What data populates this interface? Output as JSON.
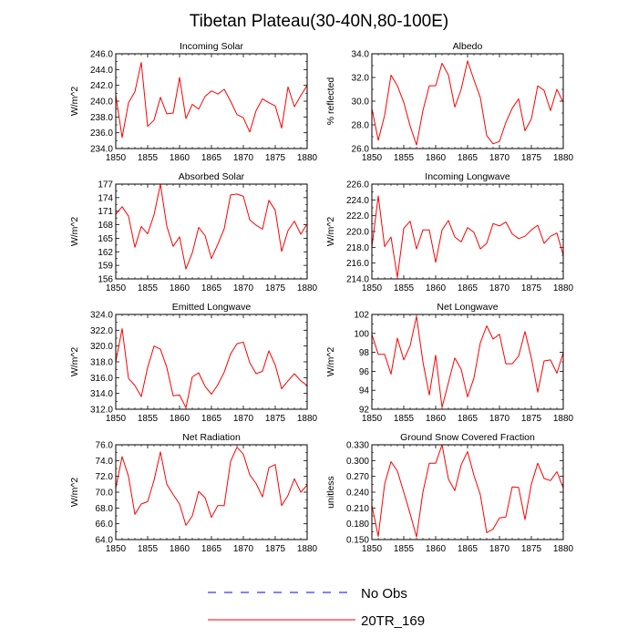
{
  "figure_title": "Tibetan Plateau(30-40N,80-100E)",
  "legend": [
    {
      "label": "No Obs",
      "color": "#0000ff",
      "dash": true
    },
    {
      "label": "20TR_169",
      "color": "#ff0000",
      "dash": false
    }
  ],
  "chart_data": [
    {
      "type": "line",
      "title": "Incoming Solar",
      "ylabel": "W/m^2",
      "xlim": [
        1850,
        1880
      ],
      "ylim": [
        234,
        246
      ],
      "yticks": [
        "234.0",
        "236.0",
        "238.0",
        "240.0",
        "242.0",
        "244.0",
        "246.0"
      ],
      "xticks": [
        "1850",
        "1855",
        "1860",
        "1865",
        "1870",
        "1875",
        "1880"
      ],
      "series": [
        {
          "name": "20TR_169",
          "x": [
            1850,
            1851,
            1852,
            1853,
            1854,
            1855,
            1856,
            1857,
            1858,
            1859,
            1860,
            1861,
            1862,
            1863,
            1864,
            1865,
            1866,
            1867,
            1868,
            1869,
            1870,
            1871,
            1872,
            1873,
            1874,
            1875,
            1876,
            1877,
            1878,
            1879,
            1880
          ],
          "values": [
            240.8,
            235.4,
            239.8,
            241.2,
            244.9,
            236.8,
            237.6,
            240.5,
            238.4,
            238.5,
            243.0,
            237.8,
            239.6,
            239.0,
            240.6,
            241.3,
            240.9,
            241.5,
            240.0,
            238.3,
            237.9,
            236.1,
            238.8,
            240.3,
            239.8,
            239.4,
            236.6,
            241.8,
            239.3,
            240.7,
            242.0
          ]
        }
      ]
    },
    {
      "type": "line",
      "title": "Albedo",
      "ylabel": "% reflected",
      "xlim": [
        1850,
        1880
      ],
      "ylim": [
        26,
        34
      ],
      "yticks": [
        "26.0",
        "28.0",
        "30.0",
        "32.0",
        "34.0"
      ],
      "xticks": [
        "1850",
        "1855",
        "1860",
        "1865",
        "1870",
        "1875",
        "1880"
      ],
      "series": [
        {
          "name": "20TR_169",
          "x": [
            1850,
            1851,
            1852,
            1853,
            1854,
            1855,
            1856,
            1857,
            1858,
            1859,
            1860,
            1861,
            1862,
            1863,
            1864,
            1865,
            1866,
            1867,
            1868,
            1869,
            1870,
            1871,
            1872,
            1873,
            1874,
            1875,
            1876,
            1877,
            1878,
            1879,
            1880
          ],
          "values": [
            29.4,
            26.7,
            28.8,
            32.2,
            31.3,
            29.9,
            27.9,
            26.3,
            29.2,
            31.3,
            31.3,
            33.2,
            32.2,
            29.5,
            31.0,
            33.4,
            31.8,
            30.3,
            27.1,
            26.4,
            26.6,
            28.2,
            29.4,
            30.2,
            27.5,
            28.5,
            31.3,
            30.9,
            29.2,
            31.0,
            29.9
          ]
        }
      ]
    },
    {
      "type": "line",
      "title": "Absorbed Solar",
      "ylabel": "W/m^2",
      "xlim": [
        1850,
        1880
      ],
      "ylim": [
        156,
        177
      ],
      "yticks": [
        "156",
        "159",
        "162",
        "165",
        "168",
        "171",
        "174",
        "177"
      ],
      "xticks": [
        "1850",
        "1855",
        "1860",
        "1865",
        "1870",
        "1875",
        "1880"
      ],
      "series": [
        {
          "name": "20TR_169",
          "x": [
            1850,
            1851,
            1852,
            1853,
            1854,
            1855,
            1856,
            1857,
            1858,
            1859,
            1860,
            1861,
            1862,
            1863,
            1864,
            1865,
            1866,
            1867,
            1868,
            1869,
            1870,
            1871,
            1872,
            1873,
            1874,
            1875,
            1876,
            1877,
            1878,
            1879,
            1880
          ],
          "values": [
            170.3,
            172.0,
            169.9,
            163.0,
            167.6,
            166.0,
            170.2,
            177.0,
            167.7,
            163.2,
            165.3,
            158.2,
            161.8,
            167.4,
            165.6,
            160.5,
            163.7,
            167.1,
            174.6,
            174.8,
            174.3,
            169.1,
            167.9,
            167.0,
            173.4,
            171.2,
            162.1,
            166.7,
            168.8,
            165.9,
            168.2
          ]
        }
      ]
    },
    {
      "type": "line",
      "title": "Incoming Longwave",
      "ylabel": "W/m^2",
      "xlim": [
        1850,
        1880
      ],
      "ylim": [
        214,
        226
      ],
      "yticks": [
        "214.0",
        "216.0",
        "218.0",
        "220.0",
        "222.0",
        "224.0",
        "226.0"
      ],
      "xticks": [
        "1850",
        "1855",
        "1860",
        "1865",
        "1870",
        "1875",
        "1880"
      ],
      "series": [
        {
          "name": "20TR_169",
          "x": [
            1850,
            1851,
            1852,
            1853,
            1854,
            1855,
            1856,
            1857,
            1858,
            1859,
            1860,
            1861,
            1862,
            1863,
            1864,
            1865,
            1866,
            1867,
            1868,
            1869,
            1870,
            1871,
            1872,
            1873,
            1874,
            1875,
            1876,
            1877,
            1878,
            1879,
            1880
          ],
          "values": [
            218.0,
            224.5,
            218.1,
            219.3,
            214.2,
            220.4,
            221.3,
            217.8,
            220.2,
            220.2,
            216.1,
            220.2,
            221.4,
            219.3,
            218.7,
            220.5,
            219.9,
            217.8,
            218.5,
            221.0,
            220.7,
            221.2,
            219.7,
            219.1,
            219.4,
            220.2,
            220.8,
            218.5,
            219.4,
            219.8,
            217.0
          ]
        }
      ]
    },
    {
      "type": "line",
      "title": "Emitted Longwave",
      "ylabel": "W/m^2",
      "xlim": [
        1850,
        1880
      ],
      "ylim": [
        312,
        324
      ],
      "yticks": [
        "312.0",
        "314.0",
        "316.0",
        "318.0",
        "320.0",
        "322.0",
        "324.0"
      ],
      "xticks": [
        "1850",
        "1855",
        "1860",
        "1865",
        "1870",
        "1875",
        "1880"
      ],
      "series": [
        {
          "name": "20TR_169",
          "x": [
            1850,
            1851,
            1852,
            1853,
            1854,
            1855,
            1856,
            1857,
            1858,
            1859,
            1860,
            1861,
            1862,
            1863,
            1864,
            1865,
            1866,
            1867,
            1868,
            1869,
            1870,
            1871,
            1872,
            1873,
            1874,
            1875,
            1876,
            1877,
            1878,
            1879,
            1880
          ],
          "values": [
            318.0,
            322.2,
            315.9,
            315.0,
            313.6,
            317.3,
            320.0,
            319.6,
            317.3,
            313.7,
            313.8,
            312.2,
            316.1,
            316.6,
            314.9,
            313.9,
            315.1,
            316.7,
            319.0,
            320.3,
            320.5,
            317.9,
            316.5,
            316.8,
            319.4,
            317.6,
            314.6,
            315.6,
            316.5,
            315.6,
            315.0
          ]
        }
      ]
    },
    {
      "type": "line",
      "title": "Net Longwave",
      "ylabel": "W/m^2",
      "xlim": [
        1850,
        1880
      ],
      "ylim": [
        92,
        102
      ],
      "yticks": [
        "92",
        "94",
        "96",
        "98",
        "100",
        "102"
      ],
      "xticks": [
        "1850",
        "1855",
        "1860",
        "1865",
        "1870",
        "1875",
        "1880"
      ],
      "series": [
        {
          "name": "20TR_169",
          "x": [
            1850,
            1851,
            1852,
            1853,
            1854,
            1855,
            1856,
            1857,
            1858,
            1859,
            1860,
            1861,
            1862,
            1863,
            1864,
            1865,
            1866,
            1867,
            1868,
            1869,
            1870,
            1871,
            1872,
            1873,
            1874,
            1875,
            1876,
            1877,
            1878,
            1879,
            1880
          ],
          "values": [
            99.9,
            97.8,
            97.8,
            95.7,
            99.5,
            97.2,
            98.7,
            101.8,
            97.0,
            93.5,
            97.7,
            92.2,
            94.8,
            97.4,
            96.2,
            93.3,
            95.3,
            99.0,
            100.8,
            99.4,
            99.9,
            96.8,
            96.8,
            97.6,
            100.2,
            97.4,
            93.8,
            97.1,
            97.2,
            95.8,
            98.0
          ]
        }
      ]
    },
    {
      "type": "line",
      "title": "Net Radiation",
      "ylabel": "W/m^2",
      "xlim": [
        1850,
        1880
      ],
      "ylim": [
        64,
        76
      ],
      "yticks": [
        "64.0",
        "66.0",
        "68.0",
        "70.0",
        "72.0",
        "74.0",
        "76.0"
      ],
      "xticks": [
        "1850",
        "1855",
        "1860",
        "1865",
        "1870",
        "1875",
        "1880"
      ],
      "series": [
        {
          "name": "20TR_169",
          "x": [
            1850,
            1851,
            1852,
            1853,
            1854,
            1855,
            1856,
            1857,
            1858,
            1859,
            1860,
            1861,
            1862,
            1863,
            1864,
            1865,
            1866,
            1867,
            1868,
            1869,
            1870,
            1871,
            1872,
            1873,
            1874,
            1875,
            1876,
            1877,
            1878,
            1879,
            1880
          ],
          "values": [
            70.5,
            74.5,
            72.0,
            67.2,
            68.5,
            68.8,
            71.5,
            75.1,
            71.0,
            69.7,
            68.5,
            65.8,
            67.0,
            70.1,
            69.3,
            66.8,
            68.3,
            68.3,
            73.9,
            75.7,
            74.8,
            72.2,
            71.1,
            69.4,
            73.1,
            73.5,
            68.3,
            69.6,
            71.7,
            70.0,
            70.9
          ]
        }
      ]
    },
    {
      "type": "line",
      "title": "Ground Snow Covered Fraction",
      "ylabel": "unitless",
      "xlim": [
        1850,
        1880
      ],
      "ylim": [
        0.15,
        0.33
      ],
      "yticks": [
        "0.150",
        "0.180",
        "0.210",
        "0.240",
        "0.270",
        "0.300",
        "0.330"
      ],
      "xticks": [
        "1850",
        "1855",
        "1860",
        "1865",
        "1870",
        "1875",
        "1880"
      ],
      "series": [
        {
          "name": "20TR_169",
          "x": [
            1850,
            1851,
            1852,
            1853,
            1854,
            1855,
            1856,
            1857,
            1858,
            1859,
            1860,
            1861,
            1862,
            1863,
            1864,
            1865,
            1866,
            1867,
            1868,
            1869,
            1870,
            1871,
            1872,
            1873,
            1874,
            1875,
            1876,
            1877,
            1878,
            1879,
            1880
          ],
          "values": [
            0.215,
            0.156,
            0.255,
            0.298,
            0.28,
            0.24,
            0.199,
            0.155,
            0.24,
            0.295,
            0.295,
            0.33,
            0.265,
            0.243,
            0.292,
            0.317,
            0.272,
            0.235,
            0.163,
            0.17,
            0.191,
            0.193,
            0.25,
            0.249,
            0.188,
            0.255,
            0.295,
            0.266,
            0.262,
            0.279,
            0.248
          ]
        }
      ]
    }
  ]
}
